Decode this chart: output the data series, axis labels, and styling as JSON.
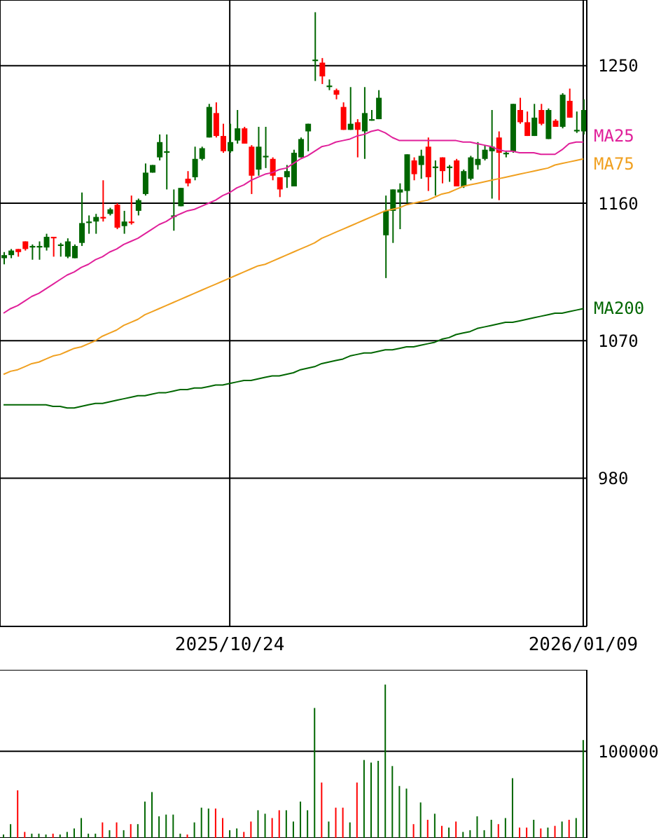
{
  "chart_data": [
    {
      "type": "candlestick",
      "categories": [
        null,
        null,
        null,
        null,
        null,
        null,
        null,
        null,
        null,
        null,
        null,
        null,
        null,
        null,
        null,
        null,
        null,
        null,
        null,
        null,
        null,
        null,
        null,
        null,
        null,
        null,
        null,
        null,
        null,
        null,
        null,
        null,
        "2025/10/24",
        null,
        null,
        null,
        null,
        null,
        null,
        null,
        null,
        null,
        null,
        null,
        null,
        null,
        null,
        null,
        null,
        null,
        null,
        null,
        null,
        null,
        null,
        null,
        null,
        null,
        null,
        null,
        null,
        null,
        null,
        null,
        null,
        null,
        null,
        null,
        null,
        null,
        null,
        null,
        null,
        null,
        null,
        null,
        null,
        null,
        null,
        null,
        null,
        null,
        "2026/01/09"
      ],
      "ohlc": [
        [
          1124,
          1128,
          1120,
          1126
        ],
        [
          1126,
          1130,
          1124,
          1129
        ],
        [
          1130,
          1130,
          1125,
          1128
        ],
        [
          1135,
          1135,
          1129,
          1130
        ],
        [
          1131,
          1133,
          1123,
          1132
        ],
        [
          1131,
          1135,
          1123,
          1132
        ],
        [
          1131,
          1140,
          1129,
          1138
        ],
        [
          1138,
          1138,
          1125,
          1137
        ],
        [
          1132,
          1134,
          1125,
          1133
        ],
        [
          1125,
          1137,
          1124,
          1135
        ],
        [
          1124,
          1133,
          1124,
          1132
        ],
        [
          1134,
          1167,
          1132,
          1147
        ],
        [
          1147,
          1152,
          1140,
          1148
        ],
        [
          1148,
          1153,
          1140,
          1151
        ],
        [
          1151,
          1175,
          1148,
          1150
        ],
        [
          1153,
          1157,
          1152,
          1156
        ],
        [
          1159,
          1160,
          1143,
          1144
        ],
        [
          1145,
          1155,
          1140,
          1148
        ],
        [
          1148,
          1165,
          1146,
          1147
        ],
        [
          1155,
          1163,
          1152,
          1162
        ],
        [
          1166,
          1186,
          1165,
          1180
        ],
        [
          1180,
          1185,
          1180,
          1185
        ],
        [
          1190,
          1205,
          1188,
          1200
        ],
        [
          1193,
          1205,
          1169,
          1194
        ],
        [
          1151,
          1169,
          1142,
          1152
        ],
        [
          1158,
          1170,
          1158,
          1170
        ],
        [
          1176,
          1181,
          1171,
          1173
        ],
        [
          1177,
          1197,
          1175,
          1189
        ],
        [
          1189,
          1197,
          1188,
          1196
        ],
        [
          1203,
          1225,
          1203,
          1223
        ],
        [
          1219,
          1226,
          1203,
          1204
        ],
        [
          1204,
          1212,
          1193,
          1194
        ],
        [
          1194,
          1212,
          1193,
          1200
        ],
        [
          1201,
          1221,
          1199,
          1209
        ],
        [
          1209,
          1210,
          1199,
          1199
        ],
        [
          1197,
          1198,
          1166,
          1178
        ],
        [
          1182,
          1210,
          1178,
          1197
        ],
        [
          1190,
          1210,
          1183,
          1191
        ],
        [
          1189,
          1190,
          1175,
          1178
        ],
        [
          1177,
          1177,
          1164,
          1169
        ],
        [
          1177,
          1185,
          1170,
          1181
        ],
        [
          1171,
          1195,
          1171,
          1193
        ],
        [
          1190,
          1203,
          1190,
          1202
        ],
        [
          1207,
          1212,
          1194,
          1212
        ],
        [
          1253,
          1285,
          1240,
          1254
        ],
        [
          1252,
          1255,
          1238,
          1243
        ],
        [
          1236,
          1241,
          1234,
          1237
        ],
        [
          1234,
          1235,
          1228,
          1231
        ],
        [
          1223,
          1226,
          1208,
          1208
        ],
        [
          1208,
          1236,
          1208,
          1212
        ],
        [
          1213,
          1215,
          1190,
          1208
        ],
        [
          1207,
          1236,
          1189,
          1219
        ],
        [
          1214,
          1221,
          1214,
          1215
        ],
        [
          1215,
          1234,
          1215,
          1229
        ],
        [
          1139,
          1165,
          1111,
          1155
        ],
        [
          1155,
          1169,
          1134,
          1169
        ],
        [
          1167,
          1173,
          1143,
          1169
        ],
        [
          1168,
          1192,
          1160,
          1192
        ],
        [
          1188,
          1190,
          1175,
          1179
        ],
        [
          1185,
          1195,
          1176,
          1191
        ],
        [
          1197,
          1203,
          1168,
          1177
        ],
        [
          1183,
          1188,
          1165,
          1184
        ],
        [
          1190,
          1190,
          1173,
          1181
        ],
        [
          1183,
          1185,
          1174,
          1184
        ],
        [
          1188,
          1189,
          1171,
          1171
        ],
        [
          1171,
          1182,
          1170,
          1181
        ],
        [
          1176,
          1191,
          1175,
          1190
        ],
        [
          1185,
          1200,
          1182,
          1189
        ],
        [
          1189,
          1198,
          1188,
          1195
        ],
        [
          1194,
          1221,
          1163,
          1197
        ],
        [
          1203,
          1207,
          1162,
          1193
        ],
        [
          1192,
          1194,
          1190,
          1193
        ],
        [
          1194,
          1225,
          1193,
          1225
        ],
        [
          1221,
          1229,
          1212,
          1213
        ],
        [
          1213,
          1220,
          1204,
          1204
        ],
        [
          1204,
          1225,
          1204,
          1216
        ],
        [
          1221,
          1225,
          1211,
          1212
        ],
        [
          1202,
          1222,
          1202,
          1221
        ],
        [
          1214,
          1215,
          1210,
          1210
        ],
        [
          1210,
          1232,
          1209,
          1231
        ],
        [
          1227,
          1235,
          1216,
          1216
        ],
        [
          1207,
          1220,
          1206,
          1208
        ],
        [
          1207,
          1228,
          1205,
          1221
        ]
      ],
      "colors": [
        "#006600",
        "#006600",
        "#ff0000",
        "#ff0000",
        "#006600",
        "#006600",
        "#006600",
        "#ff0000",
        "#006600",
        "#006600",
        "#006600",
        "#006600",
        "#006600",
        "#006600",
        "#ff0000",
        "#006600",
        "#ff0000",
        "#006600",
        "#ff0000",
        "#006600",
        "#006600",
        "#006600",
        "#006600",
        "#006600",
        "#006600",
        "#006600",
        "#ff0000",
        "#006600",
        "#006600",
        "#006600",
        "#ff0000",
        "#ff0000",
        "#006600",
        "#006600",
        "#ff0000",
        "#ff0000",
        "#006600",
        "#006600",
        "#ff0000",
        "#ff0000",
        "#006600",
        "#006600",
        "#006600",
        "#006600",
        "#006600",
        "#ff0000",
        "#006600",
        "#ff0000",
        "#ff0000",
        "#006600",
        "#ff0000",
        "#006600",
        "#006600",
        "#006600",
        "#006600",
        "#006600",
        "#006600",
        "#006600",
        "#ff0000",
        "#006600",
        "#ff0000",
        "#006600",
        "#ff0000",
        "#006600",
        "#ff0000",
        "#006600",
        "#006600",
        "#006600",
        "#006600",
        "#006600",
        "#ff0000",
        "#006600",
        "#006600",
        "#ff0000",
        "#ff0000",
        "#006600",
        "#ff0000",
        "#006600",
        "#ff0000",
        "#006600",
        "#ff0000",
        "#006600",
        "#006600"
      ],
      "series": [
        {
          "name": "MA25",
          "type": "line",
          "color": "#e0209a",
          "values": [
            1088,
            1091,
            1093,
            1096,
            1099,
            1101,
            1104,
            1107,
            1110,
            1113,
            1115,
            1118,
            1120,
            1123,
            1125,
            1128,
            1130,
            1133,
            1135,
            1137,
            1140,
            1143,
            1146,
            1148,
            1151,
            1153,
            1155,
            1156,
            1158,
            1160,
            1162,
            1165,
            1167,
            1170,
            1172,
            1175,
            1177,
            1179,
            1180,
            1182,
            1183,
            1186,
            1189,
            1191,
            1194,
            1197,
            1198,
            1200,
            1201,
            1202,
            1204,
            1205,
            1207,
            1208,
            1206,
            1203,
            1201,
            1201,
            1201,
            1201,
            1201,
            1201,
            1201,
            1201,
            1201,
            1200,
            1200,
            1199,
            1198,
            1197,
            1195,
            1194,
            1194,
            1193,
            1193,
            1193,
            1192,
            1192,
            1192,
            1195,
            1199,
            1200,
            1200
          ]
        },
        {
          "name": "MA75",
          "type": "line",
          "color": "#f0a020",
          "values": [
            1048,
            1050,
            1051,
            1053,
            1055,
            1056,
            1058,
            1060,
            1061,
            1063,
            1065,
            1066,
            1068,
            1070,
            1073,
            1075,
            1077,
            1080,
            1082,
            1084,
            1087,
            1089,
            1091,
            1093,
            1095,
            1097,
            1099,
            1101,
            1103,
            1105,
            1107,
            1109,
            1111,
            1113,
            1115,
            1117,
            1119,
            1120,
            1122,
            1124,
            1126,
            1128,
            1130,
            1132,
            1134,
            1137,
            1139,
            1141,
            1143,
            1145,
            1147,
            1149,
            1151,
            1153,
            1155,
            1156,
            1157,
            1159,
            1160,
            1161,
            1162,
            1164,
            1166,
            1167,
            1169,
            1171,
            1172,
            1173,
            1174,
            1175,
            1176,
            1177,
            1178,
            1179,
            1180,
            1181,
            1182,
            1183,
            1185,
            1186,
            1187,
            1188,
            1189
          ]
        },
        {
          "name": "MA200",
          "type": "line",
          "color": "#006600",
          "values": [
            1028,
            1028,
            1028,
            1028,
            1028,
            1028,
            1028,
            1027,
            1027,
            1026,
            1026,
            1027,
            1028,
            1029,
            1029,
            1030,
            1031,
            1032,
            1033,
            1034,
            1034,
            1035,
            1036,
            1036,
            1037,
            1038,
            1038,
            1039,
            1039,
            1040,
            1041,
            1041,
            1042,
            1043,
            1044,
            1044,
            1045,
            1046,
            1047,
            1047,
            1048,
            1049,
            1051,
            1052,
            1053,
            1055,
            1056,
            1057,
            1058,
            1060,
            1061,
            1062,
            1062,
            1063,
            1064,
            1064,
            1065,
            1066,
            1066,
            1067,
            1068,
            1069,
            1071,
            1072,
            1074,
            1075,
            1076,
            1078,
            1079,
            1080,
            1081,
            1082,
            1082,
            1083,
            1084,
            1085,
            1086,
            1087,
            1088,
            1088,
            1089,
            1090,
            1091
          ]
        }
      ],
      "ylim": [
        883,
        1293
      ],
      "yticks": [
        980,
        1070,
        1160,
        1250
      ],
      "grid": true,
      "legend": false,
      "marker": "none"
    },
    {
      "type": "bar",
      "tick_labels": "y",
      "ylim": [
        0,
        194000
      ],
      "yticks": [
        100000
      ],
      "grid": "y",
      "categories": [
        null,
        null,
        null,
        null,
        null,
        null,
        null,
        null,
        null,
        null,
        null,
        null,
        null,
        null,
        null,
        null,
        null,
        null,
        null,
        null,
        null,
        null,
        null,
        null,
        null,
        null,
        null,
        null,
        null,
        null,
        null,
        null,
        null,
        null,
        null,
        null,
        null,
        null,
        null,
        null,
        null,
        null,
        null,
        null,
        null,
        null,
        null,
        null,
        null,
        null,
        null,
        null,
        null,
        null,
        null,
        null,
        null,
        null,
        null,
        null,
        null,
        null,
        null,
        null,
        null,
        null,
        null,
        null,
        null,
        null,
        null,
        null,
        null,
        null,
        null,
        null,
        null,
        null,
        null,
        null,
        null,
        null,
        null
      ],
      "values": [
        4000,
        16000,
        55000,
        7000,
        5000,
        5000,
        4000,
        5000,
        4000,
        7000,
        11000,
        23000,
        5000,
        5000,
        18000,
        9000,
        18000,
        9000,
        16000,
        16000,
        42000,
        53000,
        25000,
        27000,
        27000,
        5000,
        4000,
        18000,
        35000,
        34000,
        34000,
        23000,
        9000,
        11000,
        7000,
        19000,
        32000,
        28000,
        23000,
        32000,
        32000,
        19000,
        42000,
        32000,
        150000,
        64000,
        19000,
        35000,
        35000,
        18000,
        64000,
        90000,
        87000,
        89000,
        177000,
        83000,
        60000,
        57000,
        16000,
        41000,
        21000,
        28000,
        14000,
        12000,
        19000,
        7000,
        9000,
        25000,
        9000,
        21000,
        16000,
        23000,
        69000,
        12000,
        12000,
        21000,
        11000,
        12000,
        14000,
        19000,
        21000,
        23000,
        113000
      ],
      "colors": [
        "#006600",
        "#006600",
        "#ff0000",
        "#ff0000",
        "#006600",
        "#006600",
        "#006600",
        "#ff0000",
        "#006600",
        "#006600",
        "#006600",
        "#006600",
        "#006600",
        "#006600",
        "#ff0000",
        "#006600",
        "#ff0000",
        "#006600",
        "#ff0000",
        "#006600",
        "#006600",
        "#006600",
        "#006600",
        "#006600",
        "#006600",
        "#006600",
        "#ff0000",
        "#006600",
        "#006600",
        "#006600",
        "#ff0000",
        "#ff0000",
        "#006600",
        "#006600",
        "#ff0000",
        "#ff0000",
        "#006600",
        "#006600",
        "#ff0000",
        "#ff0000",
        "#006600",
        "#006600",
        "#006600",
        "#006600",
        "#006600",
        "#ff0000",
        "#006600",
        "#ff0000",
        "#ff0000",
        "#006600",
        "#ff0000",
        "#006600",
        "#006600",
        "#006600",
        "#006600",
        "#006600",
        "#006600",
        "#006600",
        "#ff0000",
        "#006600",
        "#ff0000",
        "#006600",
        "#ff0000",
        "#006600",
        "#ff0000",
        "#006600",
        "#006600",
        "#006600",
        "#006600",
        "#006600",
        "#ff0000",
        "#006600",
        "#006600",
        "#ff0000",
        "#ff0000",
        "#006600",
        "#ff0000",
        "#006600",
        "#ff0000",
        "#006600",
        "#ff0000",
        "#006600",
        "#006600"
      ]
    }
  ]
}
